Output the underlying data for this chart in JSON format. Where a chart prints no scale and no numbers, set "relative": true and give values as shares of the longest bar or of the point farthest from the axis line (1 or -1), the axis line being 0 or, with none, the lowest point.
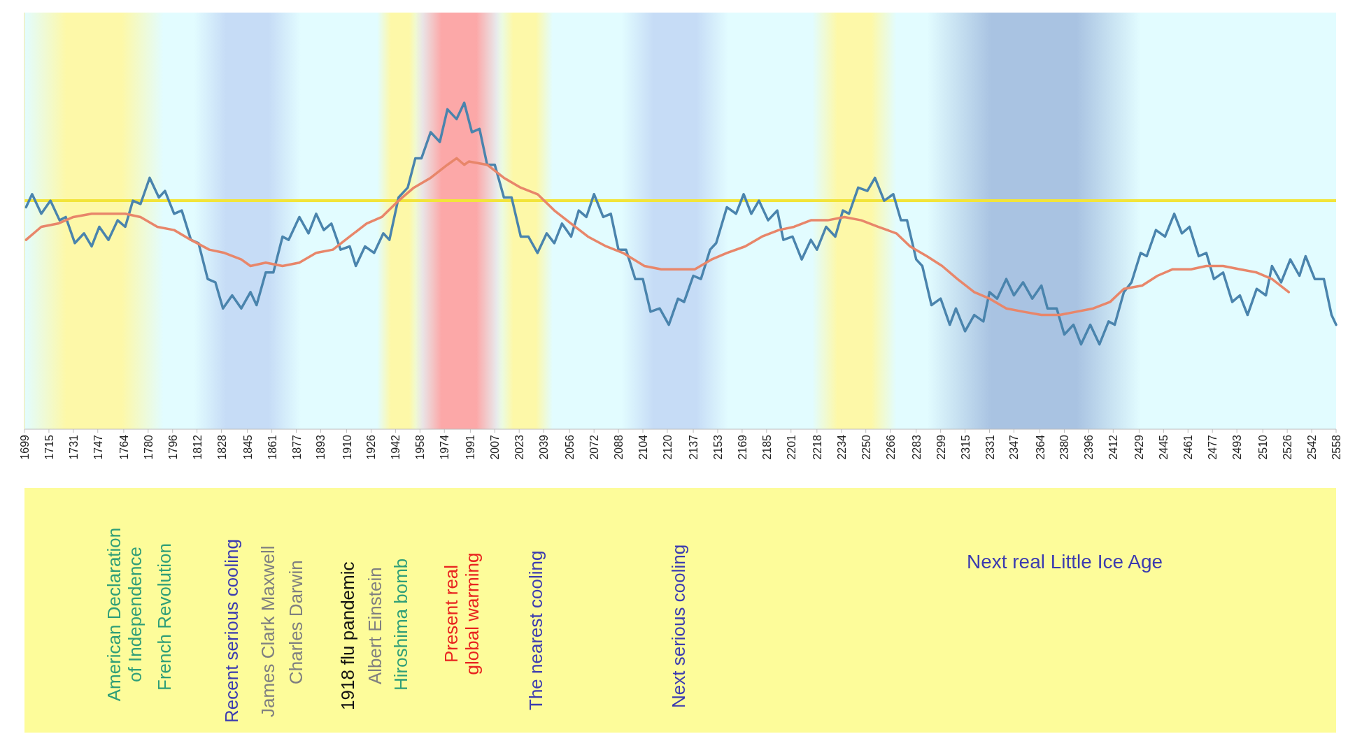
{
  "chart_data": {
    "type": "line",
    "relative": true,
    "xlim": [
      1699,
      2558
    ],
    "xticks": [
      1699,
      1715,
      1731,
      1747,
      1764,
      1780,
      1796,
      1812,
      1828,
      1845,
      1861,
      1877,
      1893,
      1910,
      1926,
      1942,
      1958,
      1974,
      1991,
      2007,
      2023,
      2039,
      2056,
      2072,
      2088,
      2104,
      2120,
      2137,
      2153,
      2169,
      2185,
      2201,
      2218,
      2234,
      2250,
      2266,
      2283,
      2299,
      2315,
      2331,
      2347,
      2364,
      2380,
      2396,
      2412,
      2429,
      2445,
      2461,
      2477,
      2493,
      2510,
      2526,
      2542,
      2558
    ],
    "series": [
      {
        "color": "#4a84ad",
        "x": [
          1700,
          1704,
          1710,
          1716,
          1722,
          1726,
          1732,
          1738,
          1743,
          1748,
          1754,
          1760,
          1765,
          1770,
          1775,
          1781,
          1787,
          1791,
          1797,
          1802,
          1808,
          1813,
          1819,
          1824,
          1829,
          1835,
          1841,
          1847,
          1851,
          1857,
          1862,
          1868,
          1872,
          1879,
          1885,
          1890,
          1895,
          1900,
          1906,
          1912,
          1916,
          1922,
          1928,
          1934,
          1938,
          1944,
          1950,
          1955,
          1959,
          1965,
          1971,
          1976,
          1982,
          1987,
          1992,
          1997,
          2002,
          2007,
          2013,
          2018,
          2024,
          2029,
          2035,
          2041,
          2046,
          2051,
          2057,
          2062,
          2067,
          2072,
          2078,
          2083,
          2088,
          2093,
          2099,
          2104,
          2109,
          2115,
          2121,
          2127,
          2131,
          2137,
          2142,
          2148,
          2152,
          2159,
          2165,
          2170,
          2175,
          2180,
          2186,
          2192,
          2196,
          2202,
          2208,
          2214,
          2218,
          2224,
          2230,
          2235,
          2239,
          2245,
          2251,
          2256,
          2262,
          2268,
          2273,
          2277,
          2283,
          2287,
          2293,
          2299,
          2305,
          2309,
          2315,
          2321,
          2327,
          2331,
          2336,
          2342,
          2347,
          2353,
          2359,
          2365,
          2369,
          2375,
          2380,
          2386,
          2391,
          2397,
          2403,
          2409,
          2413,
          2419,
          2424,
          2430,
          2434,
          2440,
          2446,
          2452,
          2457,
          2462,
          2468,
          2473,
          2478,
          2484,
          2490,
          2495,
          2500,
          2506,
          2512,
          2516,
          2522,
          2528,
          2534,
          2538,
          2544,
          2550,
          2555,
          2558
        ],
        "values": [
          0.68,
          0.72,
          0.66,
          0.7,
          0.64,
          0.65,
          0.57,
          0.6,
          0.56,
          0.62,
          0.58,
          0.64,
          0.62,
          0.7,
          0.69,
          0.77,
          0.71,
          0.73,
          0.66,
          0.67,
          0.58,
          0.57,
          0.46,
          0.45,
          0.37,
          0.41,
          0.37,
          0.42,
          0.38,
          0.48,
          0.48,
          0.59,
          0.58,
          0.65,
          0.6,
          0.66,
          0.61,
          0.63,
          0.55,
          0.56,
          0.5,
          0.56,
          0.54,
          0.6,
          0.58,
          0.71,
          0.74,
          0.83,
          0.83,
          0.91,
          0.88,
          0.98,
          0.95,
          1.0,
          0.91,
          0.92,
          0.81,
          0.81,
          0.71,
          0.71,
          0.59,
          0.59,
          0.54,
          0.6,
          0.57,
          0.63,
          0.59,
          0.67,
          0.65,
          0.72,
          0.65,
          0.66,
          0.55,
          0.55,
          0.46,
          0.46,
          0.36,
          0.37,
          0.32,
          0.4,
          0.39,
          0.47,
          0.46,
          0.55,
          0.57,
          0.68,
          0.66,
          0.72,
          0.66,
          0.7,
          0.64,
          0.67,
          0.58,
          0.59,
          0.52,
          0.58,
          0.55,
          0.62,
          0.59,
          0.67,
          0.66,
          0.74,
          0.73,
          0.77,
          0.7,
          0.72,
          0.64,
          0.64,
          0.52,
          0.5,
          0.38,
          0.4,
          0.32,
          0.37,
          0.3,
          0.35,
          0.33,
          0.42,
          0.4,
          0.46,
          0.41,
          0.45,
          0.4,
          0.44,
          0.37,
          0.37,
          0.29,
          0.32,
          0.26,
          0.32,
          0.26,
          0.33,
          0.32,
          0.42,
          0.45,
          0.54,
          0.53,
          0.61,
          0.59,
          0.66,
          0.6,
          0.62,
          0.53,
          0.54,
          0.46,
          0.48,
          0.39,
          0.41,
          0.35,
          0.43,
          0.41,
          0.5,
          0.45,
          0.52,
          0.47,
          0.53,
          0.46,
          0.46,
          0.35,
          0.32
        ]
      },
      {
        "color": "#e8866a",
        "x": [
          1700,
          1710,
          1721,
          1731,
          1743,
          1754,
          1765,
          1775,
          1786,
          1797,
          1808,
          1820,
          1830,
          1841,
          1847,
          1857,
          1868,
          1879,
          1890,
          1901,
          1912,
          1923,
          1933,
          1944,
          1954,
          1965,
          1976,
          1982,
          1987,
          1990,
          2002,
          2013,
          2024,
          2035,
          2046,
          2057,
          2068,
          2080,
          2091,
          2105,
          2116,
          2128,
          2138,
          2149,
          2159,
          2171,
          2182,
          2193,
          2203,
          2214,
          2225,
          2236,
          2247,
          2258,
          2270,
          2279,
          2290,
          2300,
          2310,
          2321,
          2331,
          2342,
          2353,
          2365,
          2377,
          2388,
          2399,
          2410,
          2419,
          2431,
          2441,
          2451,
          2463,
          2473,
          2484,
          2495,
          2506,
          2516,
          2527
        ],
        "values": [
          0.58,
          0.62,
          0.63,
          0.65,
          0.66,
          0.66,
          0.66,
          0.65,
          0.62,
          0.61,
          0.58,
          0.55,
          0.54,
          0.52,
          0.5,
          0.51,
          0.5,
          0.51,
          0.54,
          0.55,
          0.59,
          0.63,
          0.65,
          0.7,
          0.74,
          0.77,
          0.81,
          0.83,
          0.81,
          0.82,
          0.81,
          0.77,
          0.74,
          0.72,
          0.67,
          0.63,
          0.59,
          0.56,
          0.54,
          0.5,
          0.49,
          0.49,
          0.49,
          0.52,
          0.54,
          0.56,
          0.59,
          0.61,
          0.62,
          0.64,
          0.64,
          0.65,
          0.64,
          0.62,
          0.6,
          0.56,
          0.53,
          0.5,
          0.46,
          0.42,
          0.4,
          0.37,
          0.36,
          0.35,
          0.35,
          0.36,
          0.37,
          0.39,
          0.43,
          0.44,
          0.47,
          0.49,
          0.49,
          0.5,
          0.5,
          0.49,
          0.48,
          0.46,
          0.42
        ]
      }
    ],
    "ref_lines": [
      {
        "axis": "y",
        "value": 0.7,
        "color": "#f2e43a"
      }
    ],
    "bands": [
      {
        "axis": "x",
        "from": 1699,
        "to": 1790,
        "color": "#fdf8a8"
      },
      {
        "axis": "x",
        "from": 1810,
        "to": 1880,
        "color": "#c6dcf6"
      },
      {
        "axis": "x",
        "from": 1930,
        "to": 1960,
        "color": "#fdf8a8"
      },
      {
        "axis": "x",
        "from": 1955,
        "to": 2012,
        "color": "#fca8a8"
      },
      {
        "axis": "x",
        "from": 2008,
        "to": 2045,
        "color": "#fdf8a8"
      },
      {
        "axis": "x",
        "from": 2090,
        "to": 2160,
        "color": "#c6dcf6"
      },
      {
        "axis": "x",
        "from": 2215,
        "to": 2270,
        "color": "#fdf8a8"
      },
      {
        "axis": "x",
        "from": 2290,
        "to": 2430,
        "color": "#a9c3e2"
      }
    ],
    "annotations": [
      "American Declaration\nof Independence",
      "French Revolution",
      "Recent serious cooling",
      "James Clark Maxwell",
      "Charles Darwin",
      "1918 flu pandemic",
      "Albert Einstein",
      "Hiroshima bomb",
      "Present real\nglobal warming",
      "The nearest cooling",
      "Next serious cooling",
      "Next real Little Ice Age"
    ]
  }
}
